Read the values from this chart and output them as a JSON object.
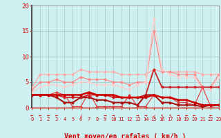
{
  "xlabel": "Vent moyen/en rafales ( km/h )",
  "background_color": "#cff0f0",
  "grid_color": "#aacccc",
  "x_ticks": [
    0,
    1,
    2,
    3,
    4,
    5,
    6,
    7,
    8,
    9,
    10,
    11,
    12,
    13,
    14,
    15,
    16,
    17,
    18,
    19,
    20,
    21,
    22,
    23
  ],
  "ylim": [
    0,
    20
  ],
  "xlim": [
    0,
    23
  ],
  "lines": [
    {
      "x": [
        0,
        1,
        2,
        3,
        4,
        5,
        6,
        7,
        8,
        9,
        10,
        11,
        12,
        13,
        14,
        15,
        16,
        17,
        18,
        19,
        20,
        21,
        22,
        23
      ],
      "y": [
        4,
        6.5,
        6.5,
        6.5,
        6.5,
        6.5,
        7.5,
        7,
        7,
        7,
        7,
        6.5,
        6.5,
        6.5,
        6.5,
        7.5,
        7,
        7,
        7,
        7,
        7,
        6.5,
        6.5,
        6.5
      ],
      "color": "#ffaaaa",
      "lw": 0.9,
      "marker": "o",
      "ms": 1.8
    },
    {
      "x": [
        0,
        1,
        2,
        3,
        4,
        5,
        6,
        7,
        8,
        9,
        10,
        11,
        12,
        13,
        14,
        15,
        16,
        17,
        18,
        19,
        20,
        21,
        22,
        23
      ],
      "y": [
        3.5,
        5,
        5,
        5.5,
        5,
        5,
        6,
        5.5,
        5.5,
        5.5,
        5,
        5,
        4.5,
        5,
        5,
        15,
        7,
        7,
        6.5,
        6.5,
        6.5,
        4,
        4,
        6.5
      ],
      "color": "#ff8888",
      "lw": 0.9,
      "marker": "o",
      "ms": 1.8
    },
    {
      "x": [
        0,
        1,
        2,
        3,
        4,
        5,
        6,
        7,
        8,
        9,
        10,
        11,
        12,
        13,
        14,
        15,
        16,
        17,
        18,
        19,
        20,
        21,
        22,
        23
      ],
      "y": [
        3,
        4,
        4.5,
        4.5,
        4,
        4.5,
        5,
        5,
        4.5,
        4.5,
        4.5,
        4,
        3.5,
        4.5,
        5,
        17.5,
        7.5,
        6.5,
        6,
        6,
        6,
        3.5,
        3.5,
        6
      ],
      "color": "#ffcccc",
      "lw": 0.9,
      "marker": "o",
      "ms": 1.8
    },
    {
      "x": [
        0,
        1,
        2,
        3,
        4,
        5,
        6,
        7,
        8,
        9,
        10,
        11,
        12,
        13,
        14,
        15,
        16,
        17,
        18,
        19,
        20,
        21,
        22,
        23
      ],
      "y": [
        2.5,
        2.5,
        2.5,
        2.5,
        2,
        2,
        2,
        2.5,
        2.5,
        2.5,
        2,
        2,
        2,
        2,
        2.5,
        7.5,
        4,
        4,
        4,
        4,
        4,
        4,
        4,
        4
      ],
      "color": "#cc2222",
      "lw": 1.3,
      "marker": "o",
      "ms": 1.8
    },
    {
      "x": [
        0,
        1,
        2,
        3,
        4,
        5,
        6,
        7,
        8,
        9,
        10,
        11,
        12,
        13,
        14,
        15,
        16,
        17,
        18,
        19,
        20,
        21,
        22,
        23
      ],
      "y": [
        2.5,
        2.5,
        2.5,
        3,
        2.5,
        0.2,
        0.2,
        3,
        0.2,
        0.2,
        0.2,
        0.2,
        2.5,
        0.2,
        0.2,
        2.5,
        2,
        2,
        1,
        1,
        0.5,
        4,
        0.2,
        0.5
      ],
      "color": "#dd4444",
      "lw": 0.9,
      "marker": "o",
      "ms": 1.8
    },
    {
      "x": [
        0,
        1,
        2,
        3,
        4,
        5,
        6,
        7,
        8,
        9,
        10,
        11,
        12,
        13,
        14,
        15,
        16,
        17,
        18,
        19,
        20,
        21,
        22,
        23
      ],
      "y": [
        2.5,
        2.5,
        2.5,
        2,
        1,
        1,
        2,
        2,
        1.5,
        1.5,
        1,
        1,
        1,
        0.5,
        2.5,
        2.5,
        1,
        1,
        0.5,
        0.5,
        0.5,
        0.2,
        0.5,
        0.5
      ],
      "color": "#aa1111",
      "lw": 1.5,
      "marker": "o",
      "ms": 1.8
    },
    {
      "x": [
        0,
        1,
        2,
        3,
        4,
        5,
        6,
        7,
        8,
        9,
        10,
        11,
        12,
        13,
        14,
        15,
        16,
        17,
        18,
        19,
        20,
        21,
        22,
        23
      ],
      "y": [
        2.5,
        2.5,
        2.5,
        2.5,
        2.5,
        2.5,
        2.5,
        3,
        2.5,
        2.5,
        2.5,
        2,
        2,
        2,
        2,
        2.5,
        2,
        2,
        1.5,
        1.5,
        1,
        0.5,
        0.5,
        0.5
      ],
      "color": "#cc0000",
      "lw": 1.8,
      "marker": "o",
      "ms": 1.8
    }
  ],
  "wind_arrows": [
    {
      "x": 0,
      "symbol": "←"
    },
    {
      "x": 1,
      "symbol": "←"
    },
    {
      "x": 2,
      "symbol": "←"
    },
    {
      "x": 3,
      "symbol": "←"
    },
    {
      "x": 6,
      "symbol": "↓"
    },
    {
      "x": 9,
      "symbol": "→"
    },
    {
      "x": 10,
      "symbol": "→"
    },
    {
      "x": 13,
      "symbol": "→"
    },
    {
      "x": 14,
      "symbol": "→"
    },
    {
      "x": 15,
      "symbol": "↙"
    },
    {
      "x": 16,
      "symbol": "↖"
    },
    {
      "x": 17,
      "symbol": "↖"
    },
    {
      "x": 18,
      "symbol": "→"
    },
    {
      "x": 19,
      "symbol": "←"
    },
    {
      "x": 20,
      "symbol": "←"
    },
    {
      "x": 22,
      "symbol": "←"
    }
  ]
}
